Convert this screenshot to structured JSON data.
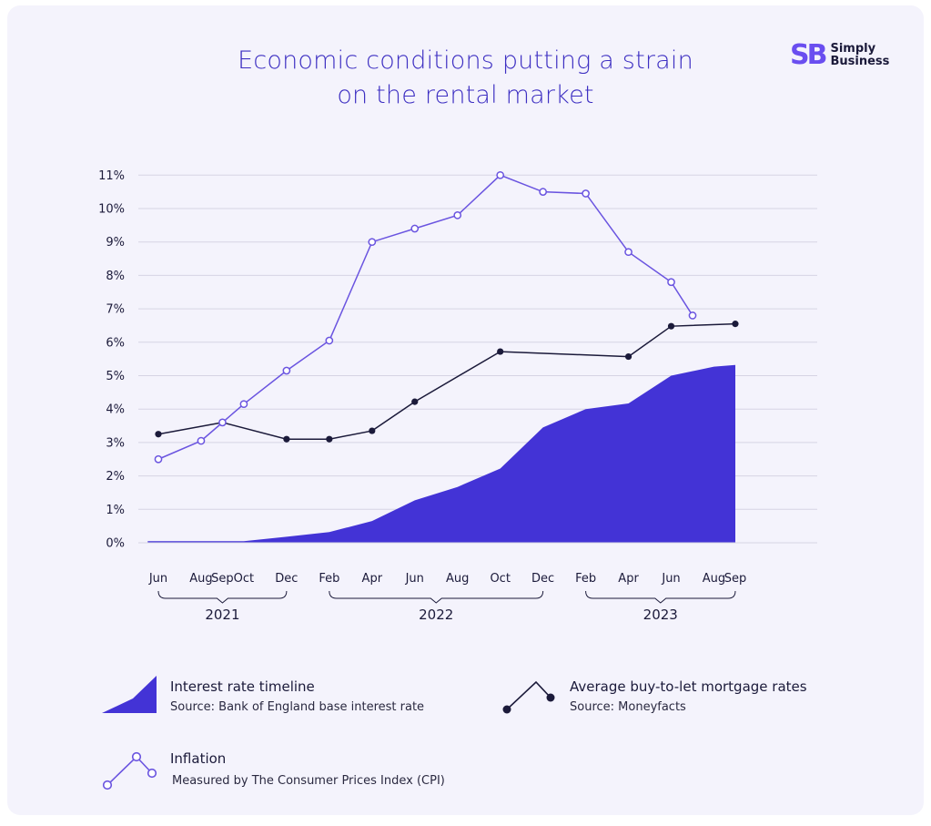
{
  "title_line1": "Economic conditions putting a strain",
  "title_line2": "on the rental market",
  "logo": {
    "mark": "SB",
    "line1": "Simply",
    "line2": "Business"
  },
  "colors": {
    "interest": "#4333d6",
    "inflation": "#6a54e0",
    "mortgage": "#1b1a3a",
    "grid": "#d6d4e4"
  },
  "chart_data": {
    "type": "line",
    "title": "Economic conditions putting a strain on the rental market",
    "ylim": [
      0,
      11
    ],
    "y_ticks": [
      "0%",
      "1%",
      "2%",
      "3%",
      "4%",
      "5%",
      "6%",
      "7%",
      "8%",
      "9%",
      "10%",
      "11%"
    ],
    "x_ticks": [
      "Jun",
      "Aug",
      "Sep",
      "Oct",
      "Dec",
      "Feb",
      "Apr",
      "Jun",
      "Aug",
      "Oct",
      "Dec",
      "Feb",
      "Apr",
      "Jun",
      "Aug",
      "Sep"
    ],
    "x_ticks_month_index": [
      0,
      2,
      3,
      4,
      6,
      8,
      10,
      12,
      14,
      16,
      18,
      20,
      22,
      24,
      26,
      27
    ],
    "years": [
      {
        "label": "2021",
        "start": 0,
        "end": 6
      },
      {
        "label": "2022",
        "start": 8,
        "end": 18
      },
      {
        "label": "2023",
        "start": 20,
        "end": 27
      }
    ],
    "series": [
      {
        "name": "Interest rate timeline",
        "kind": "area",
        "x": [
          -0.5,
          0,
          2,
          3,
          4,
          6,
          8,
          10,
          12,
          14,
          16,
          18,
          20,
          22,
          24,
          26,
          27
        ],
        "values": [
          0.05,
          0.05,
          0.05,
          0.05,
          0.05,
          0.18,
          0.32,
          0.65,
          1.27,
          1.67,
          2.22,
          3.45,
          4.0,
          4.17,
          5.0,
          5.27,
          5.32
        ]
      },
      {
        "name": "Average buy-to-let mortgage rates",
        "kind": "line",
        "x": [
          0,
          3,
          6,
          8,
          10,
          12,
          16,
          22,
          24,
          27
        ],
        "values": [
          3.25,
          3.6,
          3.1,
          3.1,
          3.35,
          4.22,
          5.72,
          5.57,
          6.48,
          6.55
        ]
      },
      {
        "name": "Inflation",
        "kind": "line",
        "x": [
          0,
          2,
          3,
          4,
          6,
          8,
          10,
          12,
          14,
          16,
          18,
          20,
          22,
          24,
          25
        ],
        "values": [
          2.5,
          3.05,
          3.6,
          4.15,
          5.15,
          6.05,
          9.0,
          9.4,
          9.8,
          11.0,
          10.5,
          10.45,
          8.7,
          7.8,
          6.8
        ]
      }
    ]
  },
  "legend": [
    {
      "title": "Interest rate timeline",
      "subtitle": "Source: Bank of England base interest rate"
    },
    {
      "title": "Average buy-to-let mortgage rates",
      "subtitle": "Source: Moneyfacts"
    },
    {
      "title": "Inflation",
      "subtitle": "Measured by The Consumer Prices Index (CPI)"
    }
  ]
}
